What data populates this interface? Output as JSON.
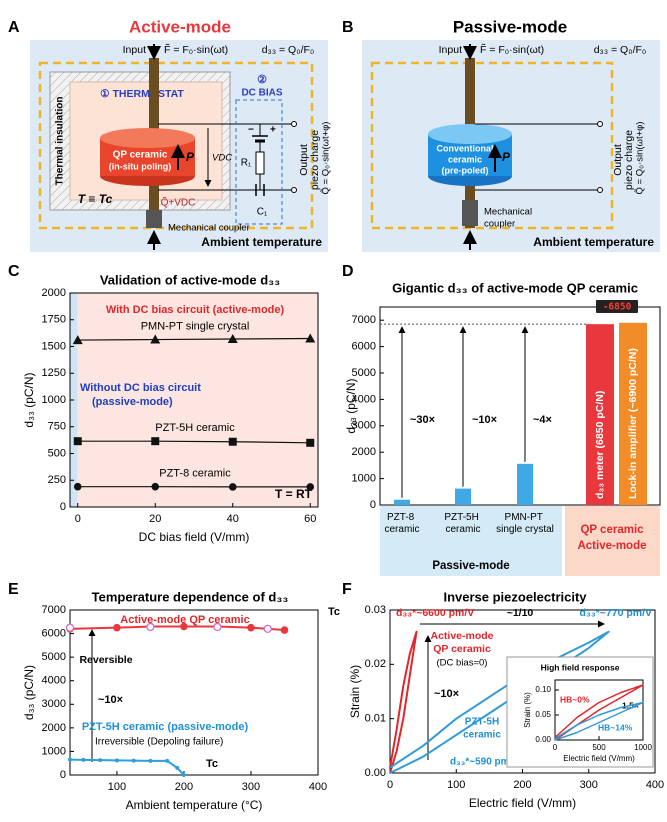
{
  "panel_labels": [
    "A",
    "B",
    "C",
    "D",
    "E",
    "F"
  ],
  "diagram_a": {
    "title": "Active-mode",
    "input": "Input",
    "force": "F̃ = F₀·sin(ωt)",
    "d33": "d₃₃ = Q₀/F₀",
    "thermostat": "① THERMOSTAT",
    "dc_bias": [
      "②",
      "DC BIAS"
    ],
    "insulation": "Thermal insulation",
    "ceramic": [
      "QP ceramic",
      "(in-situ poling)"
    ],
    "polarization": "P",
    "voltage": "VDC",
    "polarity": [
      "−",
      "+"
    ],
    "resistor": "R₁",
    "capacitor": "C₁",
    "charge": "Q̃+VDC",
    "output": [
      "Output",
      "piezo charge",
      "Q̃ = Q₀·sin(ωt+φ)"
    ],
    "temperature": "T ≡ Tc",
    "coupler": "Mechanical coupler",
    "ambient": "Ambient temperature"
  },
  "diagram_b": {
    "title": "Passive-mode",
    "input": "Input",
    "force": "F̃ = F₀·sin(ωt)",
    "d33": "d₃₃ = Q₀/F₀",
    "ceramic": [
      "Conventional",
      "ceramic",
      "(pre-poled)"
    ],
    "polarization": "P",
    "output": [
      "Output",
      "piezo charge",
      "Q̃ = Q₀·sin(ωt+φ)"
    ],
    "coupler": [
      "Mechanical",
      "coupler"
    ],
    "ambient": "Ambient temperature"
  },
  "chart_data": [
    {
      "type": "line",
      "title": "Validation of active-mode d₃₃",
      "x_label": "DC bias field (V/mm)",
      "y_label": "d₃₃ (pC/N)",
      "xlim": [
        -2,
        62
      ],
      "xticks": [
        0,
        20,
        40,
        60
      ],
      "ylim": [
        0,
        2000
      ],
      "yticks": [
        0,
        250,
        500,
        750,
        1000,
        1250,
        1500,
        1750,
        2000
      ],
      "regions": [
        {
          "from": -2,
          "to": 0,
          "color": "#cfe5f6"
        },
        {
          "from": 0,
          "to": 62,
          "color": "#fde6e1"
        }
      ],
      "series": [
        {
          "name": "PMN-PT single crystal",
          "color": "#111111",
          "marker": "triangle",
          "x": [
            0,
            20,
            40,
            60
          ],
          "values": [
            1560,
            1565,
            1570,
            1575
          ]
        },
        {
          "name": "PZT-5H ceramic",
          "color": "#111111",
          "marker": "square",
          "x": [
            0,
            20,
            40,
            60
          ],
          "values": [
            615,
            615,
            610,
            600
          ]
        },
        {
          "name": "PZT-8 ceramic",
          "color": "#111111",
          "marker": "circle",
          "x": [
            0,
            20,
            40,
            60
          ],
          "values": [
            190,
            190,
            188,
            188
          ]
        }
      ],
      "annotations": [
        "With DC bias circuit (active-mode)",
        "Without DC bias circuit",
        "(passive-mode)",
        "T = RT"
      ]
    },
    {
      "type": "bar",
      "title": "Gigantic d₃₃ of active-mode QP ceramic",
      "y_label": "d₃₃ (pC/N)",
      "categories": [
        "PZT-8 ceramic",
        "PZT-5H ceramic",
        "PMN-PT single crystal",
        "d₃₃ meter (6850 pC/N)",
        "Lock-in amplifier (~6900 pC/N)"
      ],
      "values": [
        200,
        620,
        1560,
        6850,
        6900
      ],
      "colors": [
        "#3fa9e6",
        "#3fa9e6",
        "#3fa9e6",
        "#e8383d",
        "#f28c28"
      ],
      "ylim": [
        0,
        7500
      ],
      "yticks": [
        0,
        1000,
        2000,
        3000,
        4000,
        5000,
        6000,
        7000
      ],
      "group_labels": [
        "Passive-mode",
        "QP ceramic",
        "Active-mode"
      ],
      "annotations": [
        "~30×",
        "~10×",
        "~4×"
      ],
      "meter_display": "-6850"
    },
    {
      "type": "line",
      "title": "Temperature dependence of d₃₃",
      "x_label": "Ambient temperature (°C)",
      "y_label": "d₃₃ (pC/N)",
      "xlim": [
        30,
        400
      ],
      "xticks": [
        100,
        200,
        300,
        400
      ],
      "ylim": [
        0,
        7000
      ],
      "yticks": [
        0,
        1000,
        2000,
        3000,
        4000,
        5000,
        6000,
        7000
      ],
      "series": [
        {
          "name": "Active-mode QP ceramic",
          "color": "#e8383d",
          "marker": "circle",
          "x": [
            30,
            100,
            150,
            200,
            250,
            300,
            350
          ],
          "values": [
            6200,
            6250,
            6300,
            6300,
            6300,
            6250,
            6150
          ]
        },
        {
          "name": "Reversible",
          "color": "#d36ad6",
          "marker": "open-circle",
          "line": false,
          "x": [
            30,
            150,
            250,
            325
          ],
          "values": [
            6250,
            6280,
            6280,
            6200
          ]
        },
        {
          "name": "PZT-5H ceramic (passive-mode)",
          "color": "#2b9fe0",
          "marker": "small-circle",
          "x": [
            30,
            50,
            75,
            100,
            125,
            150,
            175,
            190,
            200
          ],
          "values": [
            650,
            640,
            630,
            620,
            610,
            600,
            600,
            300,
            0
          ]
        }
      ],
      "annotations": [
        "Irreversible (Depoling failure)",
        "~10×",
        "Tc",
        "Tc"
      ]
    },
    {
      "type": "line",
      "title": "Inverse piezoelectricity",
      "x_label": "Electric field (V/mm)",
      "y_label": "Strain (%)",
      "xlim": [
        0,
        400
      ],
      "xticks": [
        0,
        100,
        200,
        300,
        400
      ],
      "ylim": [
        0,
        0.03
      ],
      "yticks": [
        {
          "value": 0,
          "label": "0.00"
        },
        0.01,
        0.02,
        0.03
      ],
      "series": [
        {
          "color": "#e3262b",
          "x": [
            0,
            10,
            20,
            30,
            40,
            30,
            20,
            10,
            0
          ],
          "values": [
            0,
            0.004,
            0.01,
            0.018,
            0.026,
            0.022,
            0.016,
            0.008,
            0.001
          ]
        },
        {
          "color": "#2f9ad8",
          "x": [
            0,
            50,
            100,
            150,
            200,
            250,
            300,
            330,
            300,
            250,
            200,
            150,
            100,
            50,
            0
          ],
          "values": [
            0,
            0.003,
            0.007,
            0.011,
            0.015,
            0.019,
            0.023,
            0.026,
            0.024,
            0.021,
            0.018,
            0.014,
            0.01,
            0.005,
            0.001
          ]
        }
      ],
      "annotations": [
        "d₃₃*~6600 pm/V",
        "~1/10",
        "d₃₃*~770 pm/V",
        "Active-mode",
        "QP ceramic",
        "(DC bias=0)",
        "~10×",
        "PZT-5H",
        "ceramic",
        "d₃₃*~590 pm/V"
      ]
    },
    {
      "type": "line",
      "inset": true,
      "title": "High field response",
      "x_label": "Electric field (V/mm)",
      "y_label": "Strain (%)",
      "xlim": [
        0,
        1000
      ],
      "xticks": [
        0,
        500,
        1000
      ],
      "ylim": [
        0,
        0.12
      ],
      "yticks": [
        {
          "value": 0,
          "label": "0.00"
        },
        0.05,
        {
          "value": 0.1,
          "label": "0.10"
        }
      ],
      "series": [
        {
          "color": "#e3262b",
          "x": [
            0,
            250,
            500,
            750,
            1000,
            750,
            500,
            250,
            0
          ],
          "values": [
            0,
            0.03,
            0.06,
            0.085,
            0.11,
            0.095,
            0.075,
            0.045,
            0.005
          ]
        },
        {
          "color": "#2f9ad8",
          "x": [
            0,
            250,
            500,
            750,
            1000,
            750,
            500,
            250,
            0
          ],
          "values": [
            0,
            0.015,
            0.035,
            0.055,
            0.075,
            0.065,
            0.05,
            0.03,
            0.003
          ]
        }
      ],
      "annotations": [
        "HB~0%",
        "HB~14%",
        "1.5×"
      ]
    }
  ]
}
